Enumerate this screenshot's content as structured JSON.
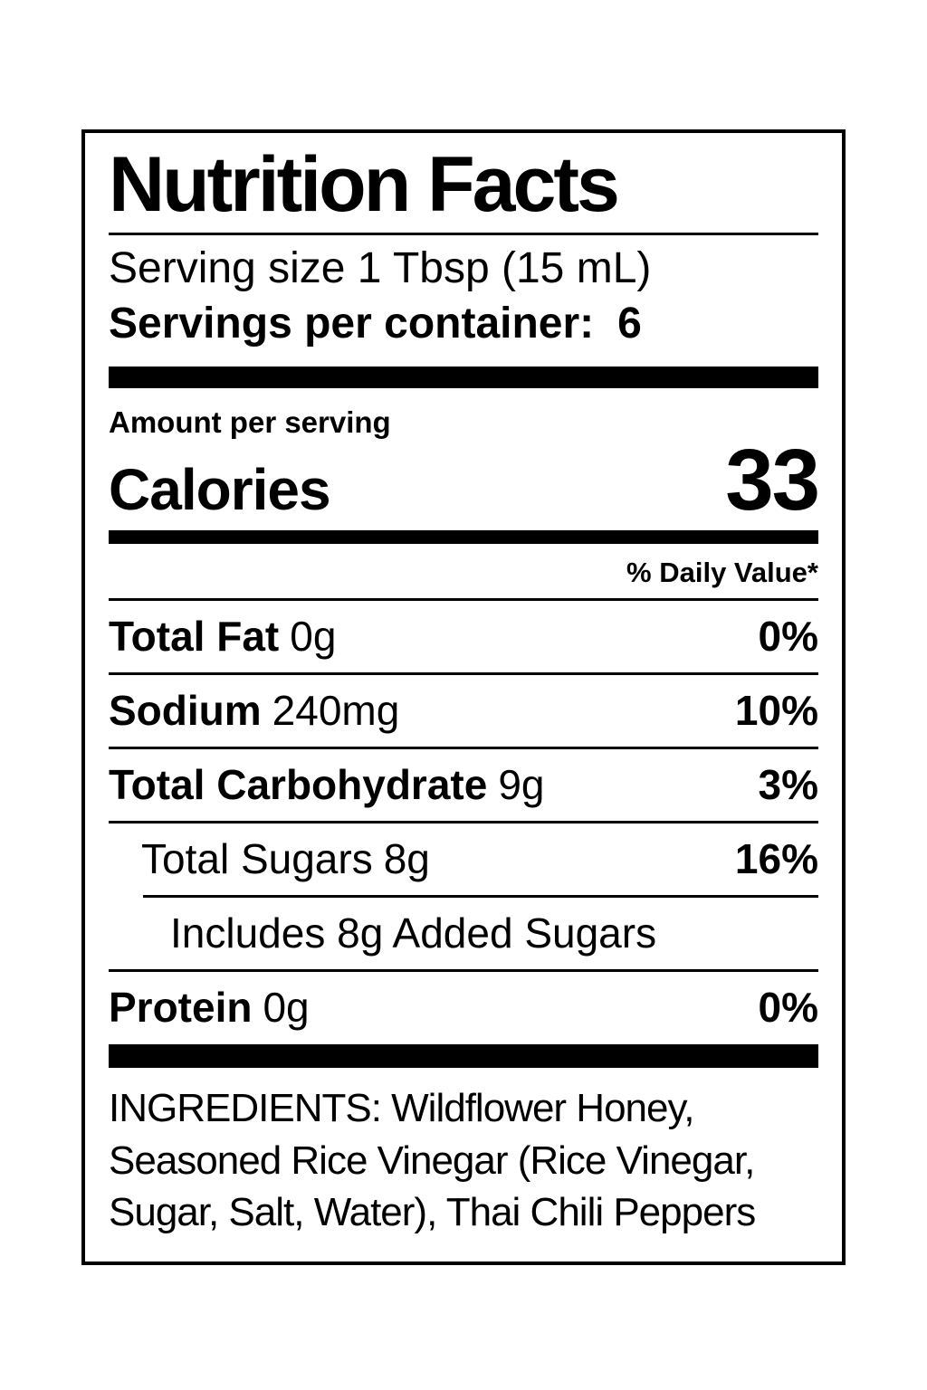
{
  "label": {
    "title": "Nutrition Facts",
    "serving_size_line": "Serving size 1 Tbsp (15 mL)",
    "servings_per_container_label": "Servings per container:",
    "servings_per_container_value": "6",
    "amount_per_serving": "Amount per serving",
    "calories_label": "Calories",
    "calories_value": "33",
    "daily_value_header": "% Daily Value*",
    "nutrients": [
      {
        "name": "Total Fat",
        "amount": "0g",
        "dv": "0%"
      },
      {
        "name": "Sodium",
        "amount": "240mg",
        "dv": "10%"
      },
      {
        "name": "Total Carbohydrate",
        "amount": "9g",
        "dv": "3%"
      },
      {
        "name": "Total Sugars",
        "amount": "8g",
        "dv": "16%"
      },
      {
        "name": "Includes 8g Added Sugars",
        "amount": "",
        "dv": ""
      },
      {
        "name": "Protein",
        "amount": "0g",
        "dv": "0%"
      }
    ],
    "ingredients": "INGREDIENTS: Wildflower Honey, Seasoned Rice Vinegar (Rice Vinegar, Sugar, Salt, Water), Thai Chili Peppers"
  },
  "colors": {
    "text": "#000000",
    "background": "#ffffff",
    "bars": "#000000"
  }
}
